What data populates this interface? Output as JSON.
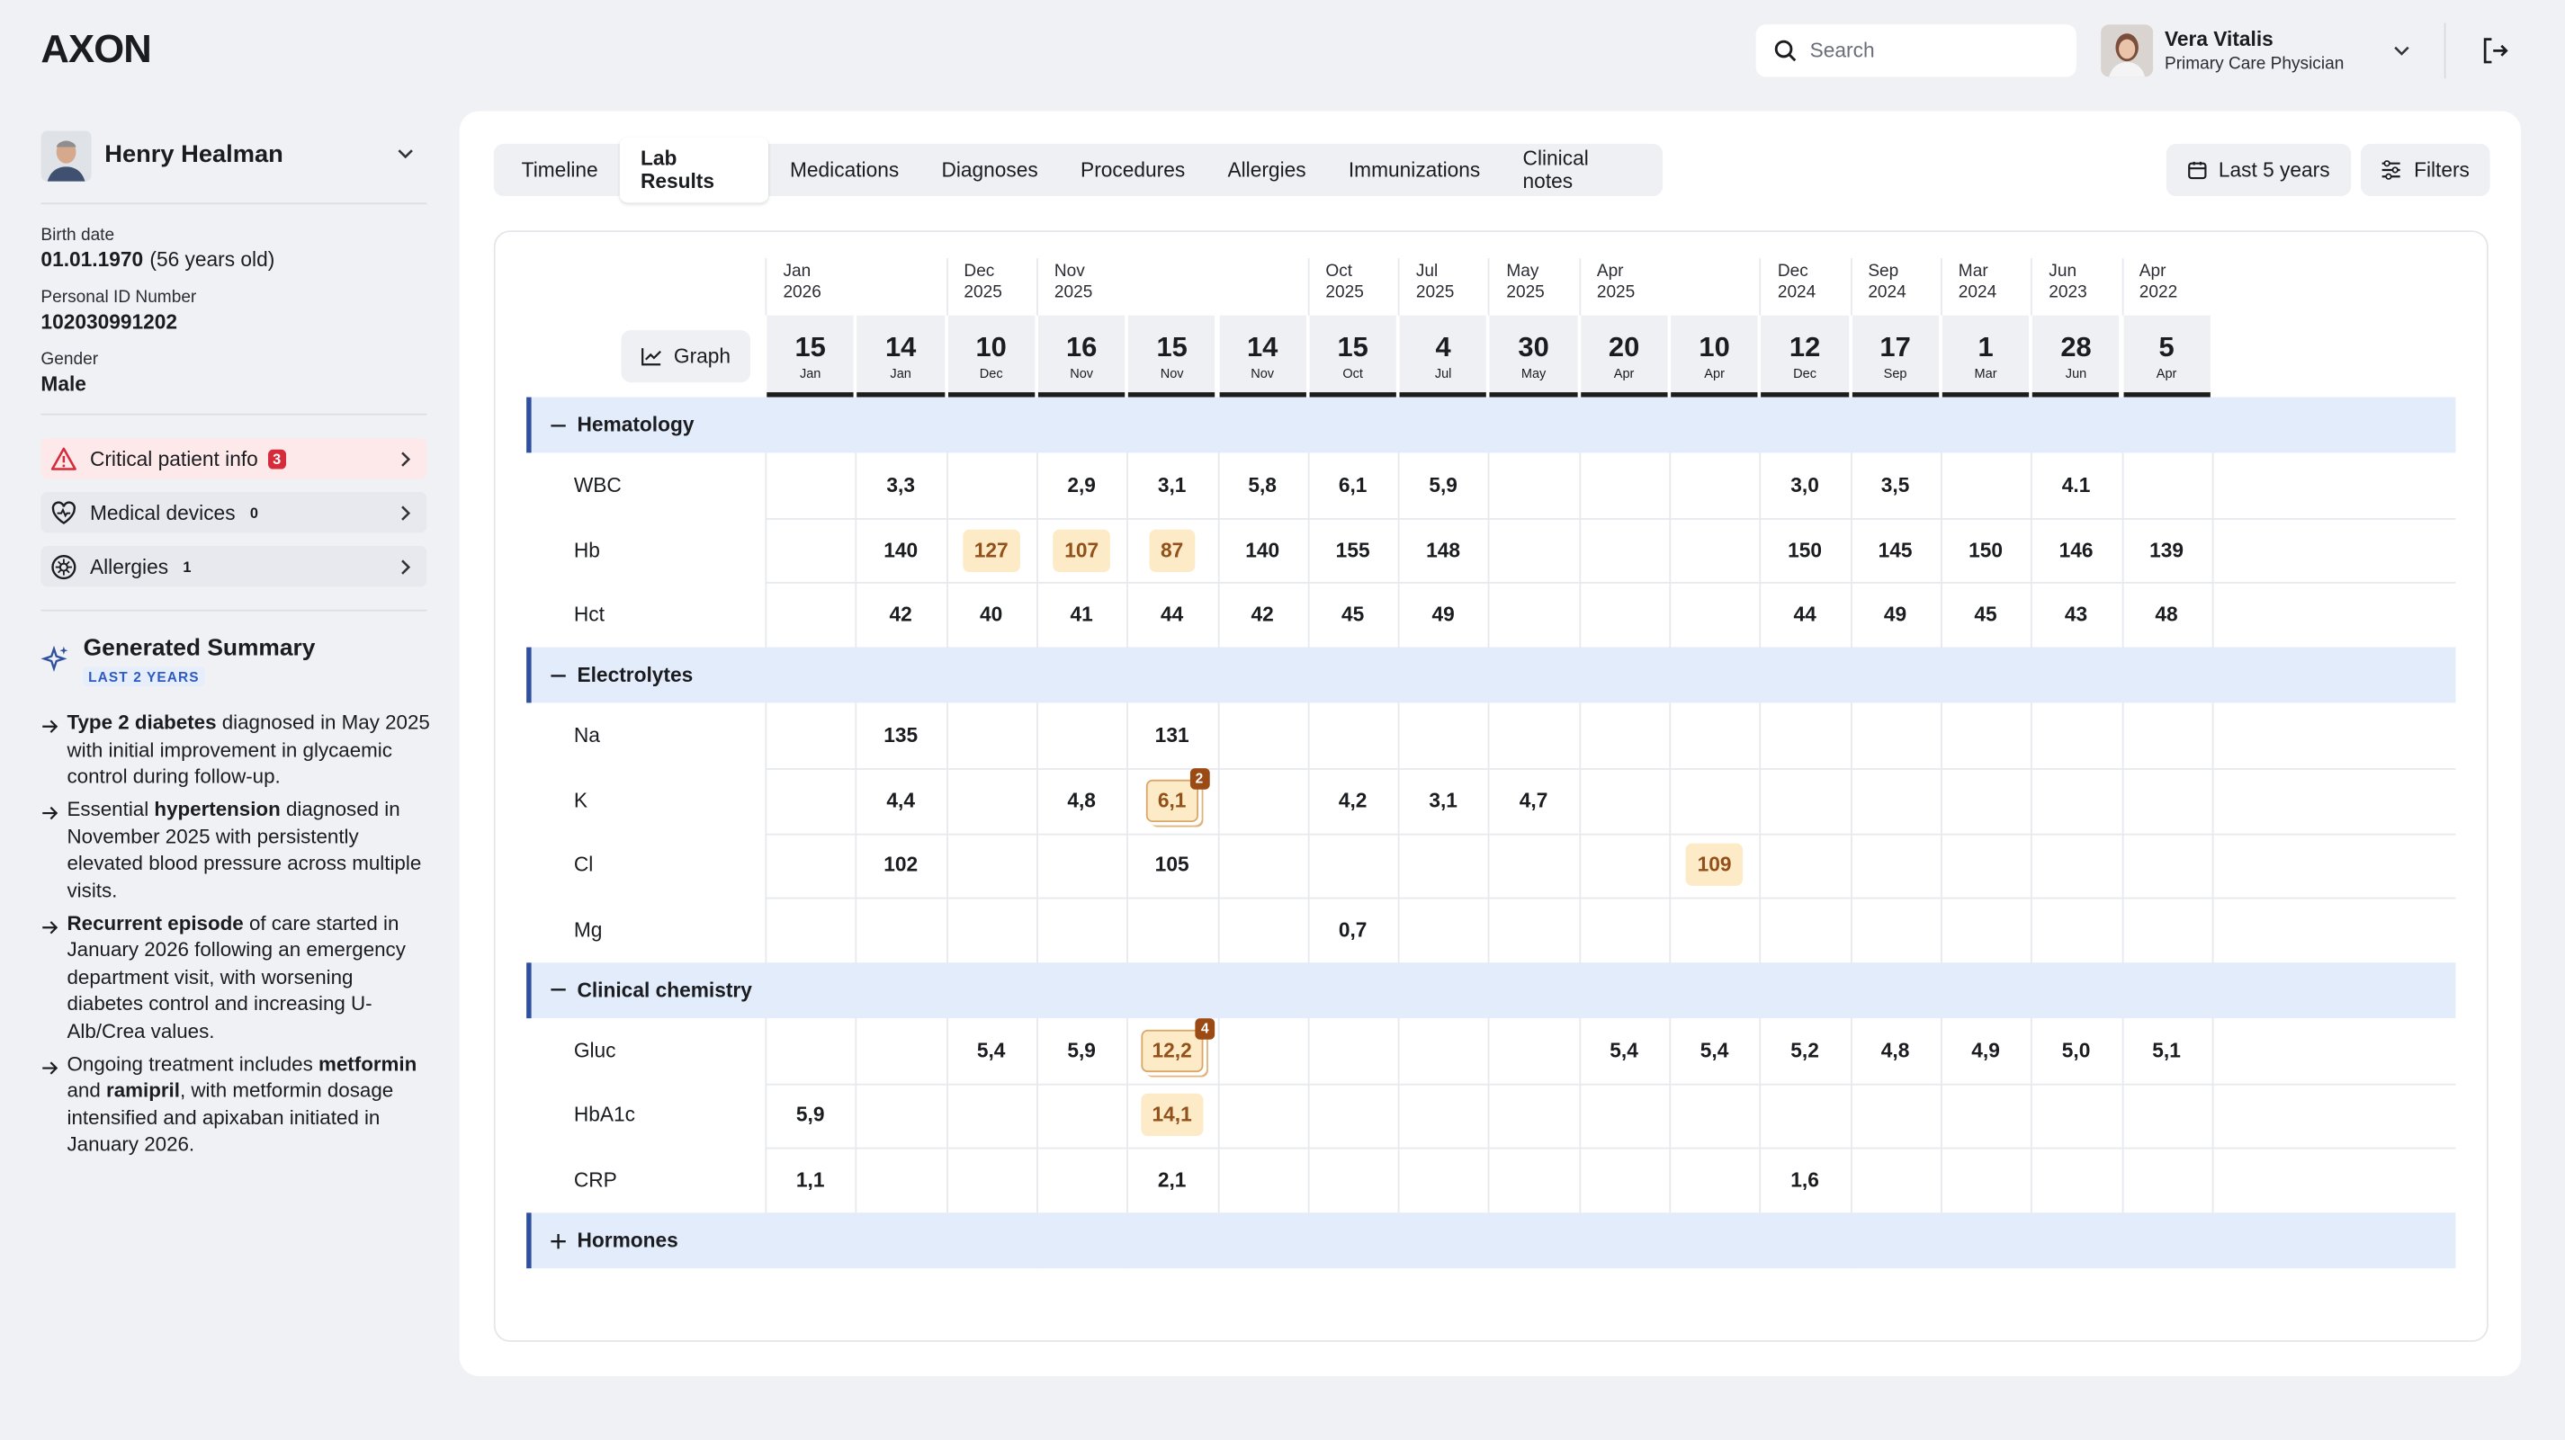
{
  "header": {
    "logo": "AXON",
    "search_placeholder": "Search",
    "user": {
      "name": "Vera Vitalis",
      "role": "Primary Care Physician"
    }
  },
  "patient": {
    "name": "Henry Healman",
    "fields": [
      {
        "label": "Birth date",
        "value": "01.01.1970",
        "note": "(56 years old)"
      },
      {
        "label": "Personal ID Number",
        "value": "102030991202"
      },
      {
        "label": "Gender",
        "value": "Male"
      }
    ],
    "alerts": [
      {
        "label": "Critical patient info",
        "count": 3
      },
      {
        "label": "Medical devices",
        "count": 0
      },
      {
        "label": "Allergies",
        "count": 1
      }
    ]
  },
  "summary": {
    "title": "Generated Summary",
    "badge": "LAST 2 YEARS",
    "items": [
      [
        {
          "text": "Type 2 diabetes",
          "bold": true
        },
        {
          "text": " diagnosed in May 2025 with initial improvement in glycaemic control during follow-up.",
          "bold": false
        }
      ],
      [
        {
          "text": "Essential ",
          "bold": false
        },
        {
          "text": "hypertension",
          "bold": true
        },
        {
          "text": " diagnosed in November 2025 with persistently elevated blood pressure across multiple visits.",
          "bold": false
        }
      ],
      [
        {
          "text": "Recurrent episode",
          "bold": true
        },
        {
          "text": " of care started in January 2026 following an emergency department visit, with worsening diabetes control and increasing U-Alb/Crea values.",
          "bold": false
        }
      ],
      [
        {
          "text": "Ongoing treatment includes ",
          "bold": false
        },
        {
          "text": "metformin",
          "bold": true
        },
        {
          "text": " and ",
          "bold": false
        },
        {
          "text": "ramipril",
          "bold": true
        },
        {
          "text": ", with metformin dosage intensified and apixaban initiated in January 2026.",
          "bold": false
        }
      ]
    ]
  },
  "tabs": {
    "items": [
      "Timeline",
      "Lab Results",
      "Medications",
      "Diagnoses",
      "Procedures",
      "Allergies",
      "Immunizations",
      "Clinical notes"
    ],
    "active": 1
  },
  "toolbar": {
    "period": "Last 5 years",
    "filters": "Filters",
    "graph": "Graph"
  },
  "table": {
    "columns": [
      {
        "day": "15",
        "month": "Jan",
        "header": {
          "month": "Jan",
          "year": "2026"
        }
      },
      {
        "day": "14",
        "month": "Jan"
      },
      {
        "day": "10",
        "month": "Dec",
        "header": {
          "month": "Dec",
          "year": "2025"
        }
      },
      {
        "day": "16",
        "month": "Nov",
        "header": {
          "month": "Nov",
          "year": "2025"
        }
      },
      {
        "day": "15",
        "month": "Nov"
      },
      {
        "day": "14",
        "month": "Nov"
      },
      {
        "day": "15",
        "month": "Oct",
        "header": {
          "month": "Oct",
          "year": "2025"
        }
      },
      {
        "day": "4",
        "month": "Jul",
        "header": {
          "month": "Jul",
          "year": "2025"
        }
      },
      {
        "day": "30",
        "month": "May",
        "header": {
          "month": "May",
          "year": "2025"
        }
      },
      {
        "day": "20",
        "month": "Apr",
        "header": {
          "month": "Apr",
          "year": "2025"
        }
      },
      {
        "day": "10",
        "month": "Apr"
      },
      {
        "day": "12",
        "month": "Dec",
        "header": {
          "month": "Dec",
          "year": "2024"
        }
      },
      {
        "day": "17",
        "month": "Sep",
        "header": {
          "month": "Sep",
          "year": "2024"
        }
      },
      {
        "day": "1",
        "month": "Mar",
        "header": {
          "month": "Mar",
          "year": "2024"
        }
      },
      {
        "day": "28",
        "month": "Jun",
        "header": {
          "month": "Jun",
          "year": "2023"
        }
      },
      {
        "day": "5",
        "month": "Apr",
        "header": {
          "month": "Apr",
          "year": "2022"
        }
      }
    ],
    "sections": [
      {
        "name": "Hematology",
        "expanded": true,
        "rows": [
          {
            "name": "WBC",
            "values": [
              null,
              "3,3",
              null,
              "2,9",
              "3,1",
              "5,8",
              "6,1",
              "5,9",
              null,
              null,
              null,
              "3,0",
              "3,5",
              null,
              "4.1",
              null
            ]
          },
          {
            "name": "Hb",
            "values": [
              null,
              "140",
              {
                "value": "127",
                "flagged": true
              },
              {
                "value": "107",
                "flagged": true
              },
              {
                "value": "87",
                "flagged": true
              },
              "140",
              "155",
              "148",
              null,
              null,
              null,
              "150",
              "145",
              "150",
              "146",
              "139"
            ]
          },
          {
            "name": "Hct",
            "values": [
              null,
              "42",
              "40",
              "41",
              "44",
              "42",
              "45",
              "49",
              null,
              null,
              null,
              "44",
              "49",
              "45",
              "43",
              "48"
            ]
          }
        ]
      },
      {
        "name": "Electrolytes",
        "expanded": true,
        "rows": [
          {
            "name": "Na",
            "values": [
              null,
              "135",
              null,
              null,
              "131",
              null,
              null,
              null,
              null,
              null,
              null,
              null,
              null,
              null,
              null,
              null
            ]
          },
          {
            "name": "K",
            "values": [
              null,
              "4,4",
              null,
              "4,8",
              {
                "value": "6,1",
                "flagged": true,
                "count": 2
              },
              null,
              "4,2",
              "3,1",
              "4,7",
              null,
              null,
              null,
              null,
              null,
              null,
              null
            ]
          },
          {
            "name": "Cl",
            "values": [
              null,
              "102",
              null,
              null,
              "105",
              null,
              null,
              null,
              null,
              null,
              {
                "value": "109",
                "flagged": true
              },
              null,
              null,
              null,
              null,
              null
            ]
          },
          {
            "name": "Mg",
            "values": [
              null,
              null,
              null,
              null,
              null,
              null,
              "0,7",
              null,
              null,
              null,
              null,
              null,
              null,
              null,
              null,
              null
            ]
          }
        ]
      },
      {
        "name": "Clinical chemistry",
        "expanded": true,
        "rows": [
          {
            "name": "Gluc",
            "values": [
              null,
              null,
              "5,4",
              "5,9",
              {
                "value": "12,2",
                "flagged": true,
                "count": 4
              },
              null,
              null,
              null,
              null,
              "5,4",
              "5,4",
              "5,2",
              "4,8",
              "4,9",
              "5,0",
              "5,1"
            ]
          },
          {
            "name": "HbA1c",
            "values": [
              "5,9",
              null,
              null,
              null,
              {
                "value": "14,1",
                "flagged": true
              },
              null,
              null,
              null,
              null,
              null,
              null,
              null,
              null,
              null,
              null,
              null
            ]
          },
          {
            "name": "CRP",
            "values": [
              "1,1",
              null,
              null,
              null,
              "2,1",
              null,
              null,
              null,
              null,
              null,
              null,
              "1,6",
              null,
              null,
              null,
              null
            ]
          }
        ]
      },
      {
        "name": "Hormones",
        "expanded": false,
        "rows": []
      }
    ]
  }
}
